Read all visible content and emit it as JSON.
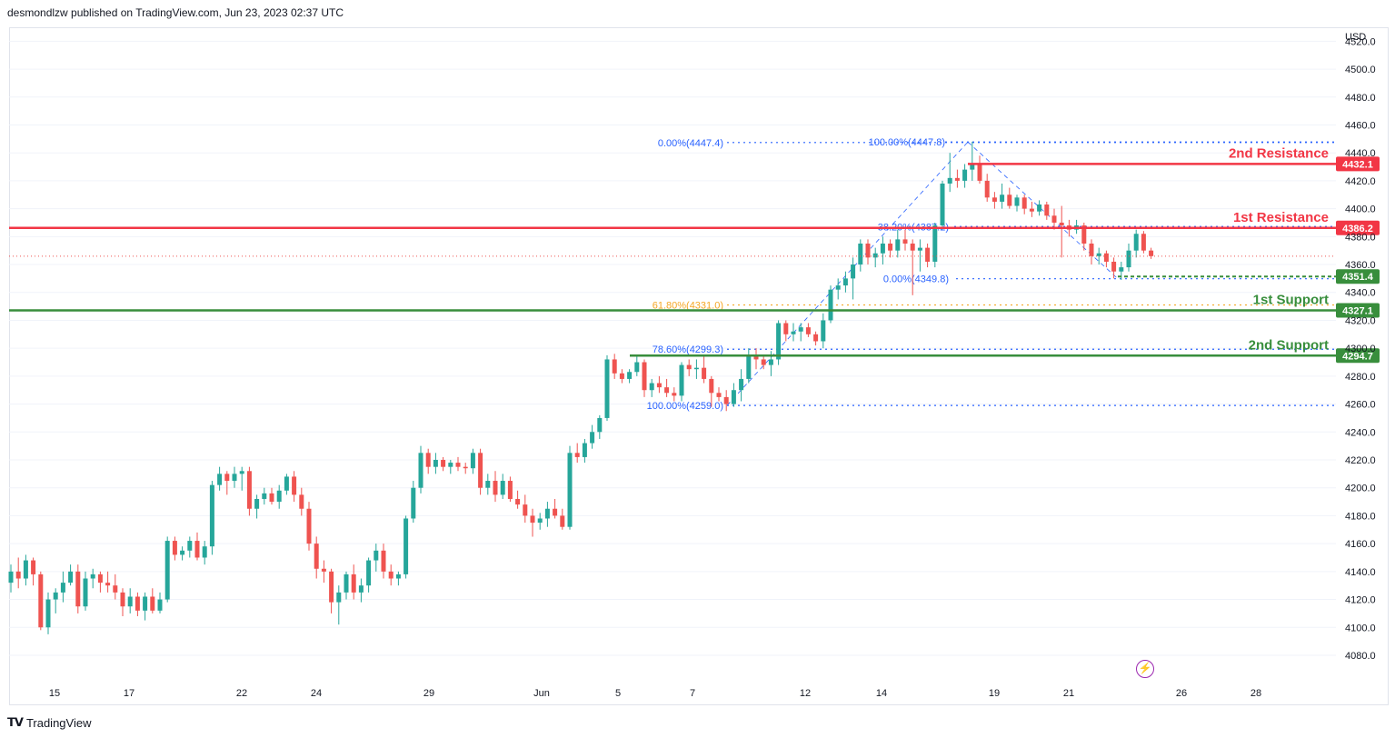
{
  "header": {
    "published": "desmondlzw published on TradingView.com, Jun 23, 2023 02:37 UTC"
  },
  "footer": {
    "brand": "TradingView"
  },
  "colors": {
    "up": "#26a69a",
    "down": "#ef5350",
    "resistance": "#f23645",
    "support": "#388e3c",
    "fib": "#2962ff",
    "fib_gold": "#f5a623",
    "axis_text": "#131722",
    "grid": "#f0f3fa"
  },
  "chart_data": {
    "type": "candlestick",
    "currency": "USD",
    "ylim": [
      4065,
      4530
    ],
    "y_ticks": [
      4080,
      4100,
      4120,
      4140,
      4160,
      4180,
      4200,
      4220,
      4240,
      4260,
      4280,
      4300,
      4320,
      4340,
      4360,
      4380,
      4400,
      4420,
      4440,
      4460,
      4480,
      4500,
      4520
    ],
    "x_ticks": [
      "15",
      "17",
      "22",
      "24",
      "29",
      "Jun",
      "5",
      "7",
      "12",
      "14",
      "19",
      "21",
      "26",
      "28"
    ],
    "price_labels": [
      {
        "label": "2nd Resistance",
        "value": 4432.1,
        "text": "4432.1",
        "kind": "resistance"
      },
      {
        "label": "1st Resistance",
        "value": 4386.2,
        "text": "4386.2",
        "kind": "resistance"
      },
      {
        "label": "",
        "value": 4351.4,
        "text": "4351.4",
        "kind": "support-dashed"
      },
      {
        "label": "1st Support",
        "value": 4327.1,
        "text": "4327.1",
        "kind": "support"
      },
      {
        "label": "2nd Support",
        "value": 4294.7,
        "text": "4294.7",
        "kind": "support"
      }
    ],
    "fib_levels": [
      {
        "text": "0.00%(4447.4)",
        "value": 4447.4
      },
      {
        "text": "100.00%(4447.8)",
        "value": 4447.8
      },
      {
        "text": "38.20%(4387.2)",
        "value": 4387.2
      },
      {
        "text": "0.00%(4349.8)",
        "value": 4349.8
      },
      {
        "text": "61.80%(4331.0)",
        "value": 4331.0
      },
      {
        "text": "78.60%(4299.3)",
        "value": 4299.3
      },
      {
        "text": "100.00%(4259.0)",
        "value": 4259.0
      }
    ],
    "last_close": 4366,
    "candles": [
      [
        4132,
        4145,
        4125,
        4140
      ],
      [
        4140,
        4150,
        4128,
        4135
      ],
      [
        4135,
        4152,
        4130,
        4148
      ],
      [
        4148,
        4150,
        4130,
        4138
      ],
      [
        4138,
        4140,
        4098,
        4100
      ],
      [
        4100,
        4125,
        4095,
        4120
      ],
      [
        4120,
        4128,
        4110,
        4125
      ],
      [
        4125,
        4140,
        4118,
        4132
      ],
      [
        4132,
        4145,
        4130,
        4140
      ],
      [
        4140,
        4145,
        4110,
        4115
      ],
      [
        4115,
        4140,
        4112,
        4135
      ],
      [
        4135,
        4142,
        4128,
        4138
      ],
      [
        4138,
        4140,
        4125,
        4132
      ],
      [
        4132,
        4140,
        4125,
        4130
      ],
      [
        4130,
        4138,
        4120,
        4125
      ],
      [
        4125,
        4128,
        4108,
        4115
      ],
      [
        4115,
        4128,
        4110,
        4122
      ],
      [
        4122,
        4125,
        4108,
        4112
      ],
      [
        4112,
        4125,
        4105,
        4122
      ],
      [
        4122,
        4128,
        4110,
        4112
      ],
      [
        4112,
        4125,
        4110,
        4120
      ],
      [
        4120,
        4165,
        4118,
        4162
      ],
      [
        4162,
        4165,
        4148,
        4152
      ],
      [
        4152,
        4158,
        4148,
        4155
      ],
      [
        4155,
        4165,
        4150,
        4162
      ],
      [
        4162,
        4168,
        4148,
        4150
      ],
      [
        4150,
        4162,
        4145,
        4158
      ],
      [
        4158,
        4205,
        4152,
        4202
      ],
      [
        4202,
        4215,
        4198,
        4210
      ],
      [
        4210,
        4212,
        4195,
        4205
      ],
      [
        4205,
        4215,
        4200,
        4210
      ],
      [
        4210,
        4215,
        4198,
        4212
      ],
      [
        4212,
        4215,
        4180,
        4185
      ],
      [
        4185,
        4195,
        4178,
        4192
      ],
      [
        4192,
        4200,
        4188,
        4196
      ],
      [
        4196,
        4200,
        4188,
        4190
      ],
      [
        4190,
        4202,
        4185,
        4198
      ],
      [
        4198,
        4210,
        4195,
        4208
      ],
      [
        4208,
        4212,
        4190,
        4195
      ],
      [
        4195,
        4200,
        4180,
        4185
      ],
      [
        4185,
        4190,
        4155,
        4160
      ],
      [
        4160,
        4165,
        4135,
        4142
      ],
      [
        4142,
        4148,
        4132,
        4140
      ],
      [
        4140,
        4142,
        4110,
        4118
      ],
      [
        4118,
        4130,
        4102,
        4125
      ],
      [
        4125,
        4140,
        4120,
        4138
      ],
      [
        4138,
        4145,
        4120,
        4125
      ],
      [
        4125,
        4135,
        4118,
        4130
      ],
      [
        4130,
        4150,
        4125,
        4148
      ],
      [
        4148,
        4160,
        4140,
        4155
      ],
      [
        4155,
        4160,
        4135,
        4140
      ],
      [
        4140,
        4145,
        4130,
        4135
      ],
      [
        4135,
        4140,
        4130,
        4138
      ],
      [
        4138,
        4180,
        4135,
        4178
      ],
      [
        4178,
        4205,
        4175,
        4200
      ],
      [
        4200,
        4230,
        4196,
        4225
      ],
      [
        4225,
        4228,
        4210,
        4215
      ],
      [
        4215,
        4225,
        4210,
        4220
      ],
      [
        4220,
        4222,
        4212,
        4215
      ],
      [
        4215,
        4220,
        4210,
        4218
      ],
      [
        4218,
        4222,
        4212,
        4215
      ],
      [
        4215,
        4218,
        4210,
        4214
      ],
      [
        4214,
        4228,
        4210,
        4225
      ],
      [
        4225,
        4228,
        4195,
        4200
      ],
      [
        4200,
        4210,
        4195,
        4205
      ],
      [
        4205,
        4212,
        4190,
        4195
      ],
      [
        4195,
        4210,
        4192,
        4205
      ],
      [
        4205,
        4208,
        4190,
        4192
      ],
      [
        4192,
        4198,
        4185,
        4188
      ],
      [
        4188,
        4195,
        4175,
        4180
      ],
      [
        4180,
        4185,
        4165,
        4175
      ],
      [
        4175,
        4182,
        4170,
        4178
      ],
      [
        4178,
        4190,
        4172,
        4185
      ],
      [
        4185,
        4192,
        4178,
        4180
      ],
      [
        4180,
        4185,
        4170,
        4172
      ],
      [
        4172,
        4230,
        4170,
        4225
      ],
      [
        4225,
        4232,
        4218,
        4222
      ],
      [
        4222,
        4235,
        4218,
        4232
      ],
      [
        4232,
        4245,
        4228,
        4240
      ],
      [
        4240,
        4252,
        4235,
        4250
      ],
      [
        4250,
        4295,
        4248,
        4292
      ],
      [
        4292,
        4296,
        4278,
        4282
      ],
      [
        4282,
        4285,
        4275,
        4278
      ],
      [
        4278,
        4285,
        4275,
        4283
      ],
      [
        4283,
        4295,
        4280,
        4290
      ],
      [
        4290,
        4292,
        4265,
        4270
      ],
      [
        4270,
        4278,
        4265,
        4275
      ],
      [
        4275,
        4280,
        4268,
        4272
      ],
      [
        4272,
        4278,
        4265,
        4268
      ],
      [
        4268,
        4272,
        4262,
        4266
      ],
      [
        4266,
        4290,
        4262,
        4288
      ],
      [
        4288,
        4292,
        4280,
        4285
      ],
      [
        4285,
        4292,
        4278,
        4286
      ],
      [
        4286,
        4295,
        4275,
        4278
      ],
      [
        4278,
        4280,
        4258,
        4268
      ],
      [
        4268,
        4272,
        4262,
        4265
      ],
      [
        4265,
        4270,
        4255,
        4260
      ],
      [
        4260,
        4275,
        4258,
        4270
      ],
      [
        4270,
        4285,
        4262,
        4278
      ],
      [
        4278,
        4300,
        4275,
        4295
      ],
      [
        4295,
        4300,
        4285,
        4292
      ],
      [
        4292,
        4295,
        4285,
        4288
      ],
      [
        4288,
        4298,
        4280,
        4292
      ],
      [
        4292,
        4320,
        4288,
        4318
      ],
      [
        4318,
        4320,
        4305,
        4310
      ],
      [
        4310,
        4318,
        4305,
        4312
      ],
      [
        4312,
        4318,
        4305,
        4315
      ],
      [
        4315,
        4318,
        4308,
        4310
      ],
      [
        4310,
        4312,
        4302,
        4305
      ],
      [
        4305,
        4325,
        4300,
        4320
      ],
      [
        4320,
        4345,
        4318,
        4342
      ],
      [
        4342,
        4350,
        4335,
        4345
      ],
      [
        4345,
        4355,
        4340,
        4350
      ],
      [
        4350,
        4365,
        4335,
        4360
      ],
      [
        4360,
        4378,
        4355,
        4375
      ],
      [
        4375,
        4378,
        4360,
        4365
      ],
      [
        4365,
        4372,
        4358,
        4368
      ],
      [
        4368,
        4380,
        4360,
        4375
      ],
      [
        4375,
        4378,
        4365,
        4370
      ],
      [
        4370,
        4385,
        4365,
        4378
      ],
      [
        4378,
        4385,
        4370,
        4375
      ],
      [
        4375,
        4378,
        4338,
        4370
      ],
      [
        4370,
        4378,
        4355,
        4372
      ],
      [
        4372,
        4375,
        4358,
        4362
      ],
      [
        4362,
        4390,
        4358,
        4388
      ],
      [
        4388,
        4420,
        4385,
        4418
      ],
      [
        4418,
        4440,
        4412,
        4422
      ],
      [
        4422,
        4428,
        4415,
        4420
      ],
      [
        4420,
        4432,
        4415,
        4428
      ],
      [
        4428,
        4448,
        4420,
        4432
      ],
      [
        4432,
        4438,
        4418,
        4420
      ],
      [
        4420,
        4425,
        4405,
        4408
      ],
      [
        4408,
        4412,
        4400,
        4405
      ],
      [
        4405,
        4418,
        4400,
        4410
      ],
      [
        4410,
        4415,
        4400,
        4402
      ],
      [
        4402,
        4410,
        4398,
        4408
      ],
      [
        4408,
        4410,
        4396,
        4400
      ],
      [
        4400,
        4405,
        4394,
        4398
      ],
      [
        4398,
        4406,
        4395,
        4403
      ],
      [
        4403,
        4405,
        4392,
        4395
      ],
      [
        4395,
        4400,
        4385,
        4390
      ],
      [
        4390,
        4402,
        4365,
        4388
      ],
      [
        4388,
        4392,
        4380,
        4385
      ],
      [
        4385,
        4392,
        4382,
        4388
      ],
      [
        4388,
        4390,
        4370,
        4375
      ],
      [
        4375,
        4378,
        4360,
        4366
      ],
      [
        4366,
        4372,
        4360,
        4368
      ],
      [
        4368,
        4370,
        4358,
        4362
      ],
      [
        4362,
        4365,
        4350,
        4355
      ],
      [
        4355,
        4362,
        4349,
        4358
      ],
      [
        4358,
        4375,
        4355,
        4370
      ],
      [
        4370,
        4385,
        4365,
        4382
      ],
      [
        4382,
        4384,
        4368,
        4370
      ],
      [
        4370,
        4372,
        4364,
        4366
      ]
    ]
  }
}
